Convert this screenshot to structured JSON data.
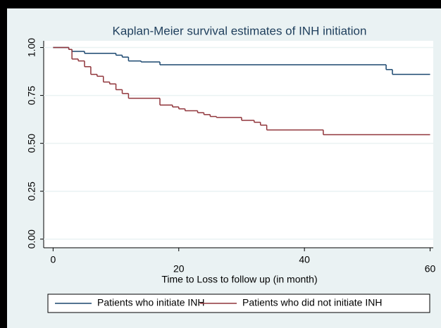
{
  "chart_data": {
    "type": "line",
    "step": "post",
    "title": "Kaplan-Meier survival estimates of INH initiation",
    "x_label": "Time to Loss to follow up (in month)",
    "xlim": [
      -1.5,
      60.5
    ],
    "ylim": [
      -0.045,
      1.035
    ],
    "xticks": [
      0,
      20,
      40,
      60
    ],
    "yticks": [
      {
        "value": 0,
        "label": "0.00"
      },
      {
        "value": 0.25,
        "label": "0.25"
      },
      {
        "value": 0.5,
        "label": "0.50"
      },
      {
        "value": 0.75,
        "label": "0.75"
      },
      {
        "value": 1,
        "label": "1.00"
      }
    ],
    "grid": true,
    "legend": "bottom",
    "series": [
      {
        "name": "Patients who initiate INH",
        "color": "#1a476f",
        "x": [
          0,
          2.5,
          3,
          5,
          10,
          11,
          12,
          14,
          17,
          53,
          54,
          60
        ],
        "values": [
          1.0,
          0.99,
          0.98,
          0.97,
          0.96,
          0.95,
          0.93,
          0.925,
          0.91,
          0.885,
          0.86,
          0.86
        ]
      },
      {
        "name": "Patients who did not initiate INH",
        "color": "#90353b",
        "x": [
          0,
          2.5,
          3,
          4,
          5,
          6,
          7,
          8,
          9,
          10,
          11,
          12,
          17,
          19,
          20,
          21,
          23,
          24,
          25,
          26,
          30,
          32,
          33,
          34,
          43,
          60
        ],
        "values": [
          1.0,
          0.99,
          0.94,
          0.93,
          0.9,
          0.86,
          0.85,
          0.82,
          0.81,
          0.78,
          0.76,
          0.735,
          0.7,
          0.69,
          0.68,
          0.67,
          0.66,
          0.65,
          0.64,
          0.635,
          0.62,
          0.61,
          0.595,
          0.57,
          0.545,
          0.545
        ]
      }
    ]
  }
}
